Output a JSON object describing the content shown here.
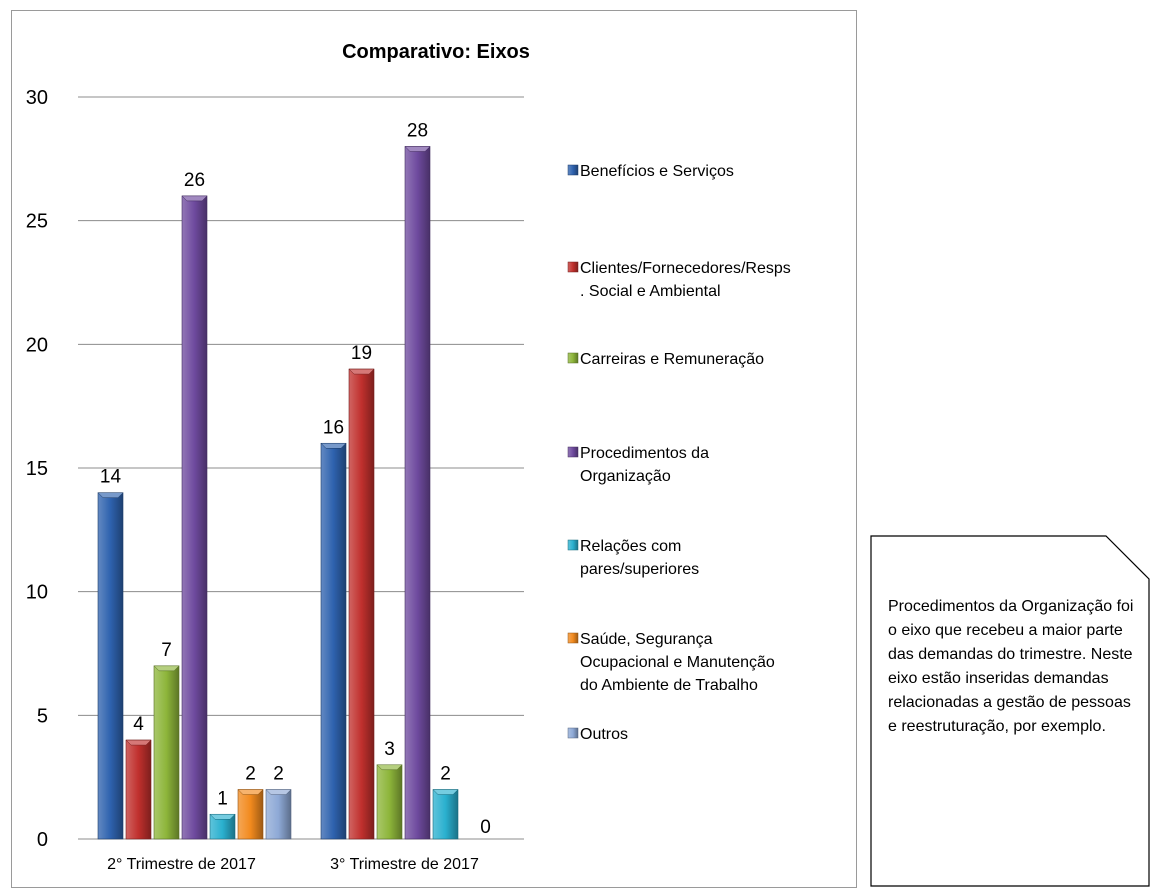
{
  "chart_data": {
    "type": "bar",
    "title": "Comparativo: Eixos",
    "categories": [
      "2° Trimestre de 2017",
      "3° Trimestre de 2017"
    ],
    "ylim": [
      0,
      30
    ],
    "yticks": [
      0,
      5,
      10,
      15,
      20,
      25,
      30
    ],
    "grid": true,
    "legend_position": "right",
    "series": [
      {
        "name": "Benefícios e Serviços",
        "name_lines": [
          "Benefícios e Serviços"
        ],
        "values": [
          14,
          16
        ],
        "color": "#2e62ae"
      },
      {
        "name": "Clientes/Fornecedores/Resps. Social e Ambiental",
        "name_lines": [
          "Clientes/Fornecedores/Resps",
          ". Social e Ambiental"
        ],
        "values": [
          4,
          19
        ],
        "color": "#c0302d"
      },
      {
        "name": "Carreiras e Remuneração",
        "name_lines": [
          "Carreiras e Remuneração"
        ],
        "values": [
          7,
          3
        ],
        "color": "#8db53a"
      },
      {
        "name": "Procedimentos da Organização",
        "name_lines": [
          "Procedimentos da",
          "Organização"
        ],
        "values": [
          26,
          28
        ],
        "color": "#6e4a9e"
      },
      {
        "name": "Relações com pares/superiores",
        "name_lines": [
          "Relações com",
          "pares/superiores"
        ],
        "values": [
          1,
          2
        ],
        "color": "#2ab0cf"
      },
      {
        "name": "Saúde, Segurança Ocupacional e Manutenção do Ambiente de Trabalho",
        "name_lines": [
          "Saúde, Segurança",
          "Ocupacional e Manutenção",
          "do Ambiente de Trabalho"
        ],
        "values": [
          2,
          0
        ],
        "color": "#f28a1e"
      },
      {
        "name": "Outros",
        "name_lines": [
          "Outros"
        ],
        "values": [
          2,
          null
        ],
        "color": "#8ea9d6"
      }
    ]
  },
  "note": {
    "text": "Procedimentos da Organização foi o eixo que recebeu a maior parte das demandas do trimestre. Neste eixo estão inseridas demandas relacionadas a gestão de pessoas e reestruturação, por exemplo."
  }
}
